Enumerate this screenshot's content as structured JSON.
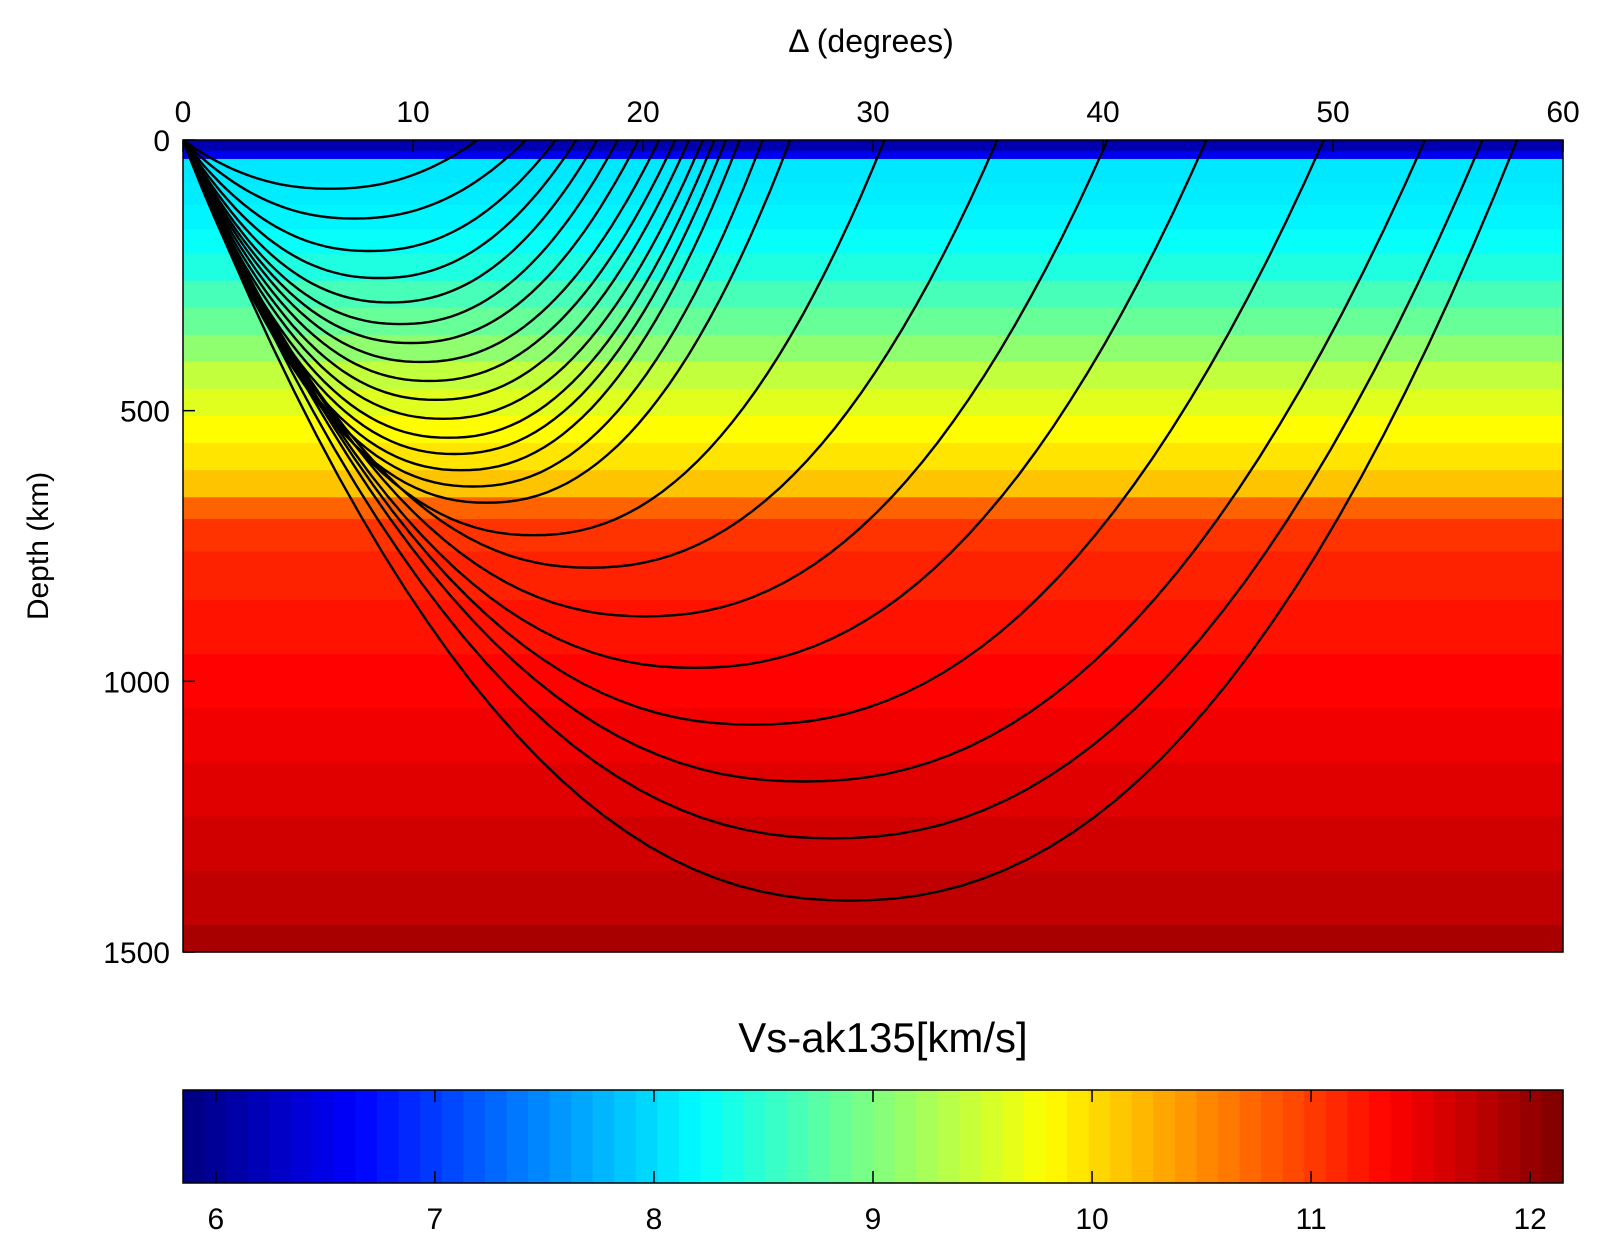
{
  "chart_data": [
    {
      "type": "heatmap",
      "title": "",
      "xlabel": "Δ (degrees)",
      "ylabel": "Depth (km)",
      "xlim": [
        0,
        60
      ],
      "ylim": [
        0,
        1500
      ],
      "y_inverted": true,
      "x_axis_position": "top",
      "grid": false,
      "x_ticks": [
        "0",
        "10",
        "20",
        "30",
        "40",
        "50",
        "60"
      ],
      "y_ticks": [
        "0",
        "500",
        "1000",
        "1500"
      ],
      "colormap": "jet",
      "color_limits": [
        5.8,
        12.1
      ],
      "velocity_profile": {
        "depth_km": [
          0,
          20,
          35,
          80,
          120,
          165,
          210,
          260,
          310,
          360,
          410,
          460,
          510,
          560,
          610,
          660,
          700,
          760,
          850,
          950,
          1050,
          1150,
          1250,
          1350,
          1450,
          1500
        ],
        "value": [
          6.1,
          6.5,
          8.02,
          8.05,
          8.1,
          8.2,
          8.35,
          8.6,
          8.8,
          9.05,
          9.36,
          9.55,
          9.75,
          9.9,
          10.1,
          10.7,
          11.0,
          11.1,
          11.2,
          11.3,
          11.4,
          11.5,
          11.6,
          11.7,
          11.85,
          11.95
        ]
      },
      "ray_paths": {
        "turning_points": [
          {
            "distance": 12.8,
            "depth": 90
          },
          {
            "distance": 14.9,
            "depth": 145
          },
          {
            "distance": 16.2,
            "depth": 205
          },
          {
            "distance": 17.1,
            "depth": 255
          },
          {
            "distance": 18.0,
            "depth": 300
          },
          {
            "distance": 18.9,
            "depth": 340
          },
          {
            "distance": 19.8,
            "depth": 375
          },
          {
            "distance": 20.7,
            "depth": 410
          },
          {
            "distance": 21.4,
            "depth": 445
          },
          {
            "distance": 22.0,
            "depth": 480
          },
          {
            "distance": 22.6,
            "depth": 515
          },
          {
            "distance": 23.1,
            "depth": 550
          },
          {
            "distance": 23.6,
            "depth": 580
          },
          {
            "distance": 24.2,
            "depth": 610
          },
          {
            "distance": 25.2,
            "depth": 640
          },
          {
            "distance": 26.4,
            "depth": 670
          },
          {
            "distance": 30.5,
            "depth": 730
          },
          {
            "distance": 35.4,
            "depth": 790
          },
          {
            "distance": 40.2,
            "depth": 880
          },
          {
            "distance": 44.5,
            "depth": 975
          },
          {
            "distance": 49.6,
            "depth": 1080
          },
          {
            "distance": 54.0,
            "depth": 1185
          },
          {
            "distance": 56.5,
            "depth": 1290
          },
          {
            "distance": 58.0,
            "depth": 1405
          }
        ]
      }
    },
    {
      "type": "heatmap",
      "title": "Vs-ak135[km/s]",
      "xlim": [
        5.85,
        12.15
      ],
      "x_ticks": [
        "6",
        "7",
        "8",
        "9",
        "10",
        "11",
        "12"
      ],
      "colormap": "jet",
      "segments": 64
    }
  ]
}
